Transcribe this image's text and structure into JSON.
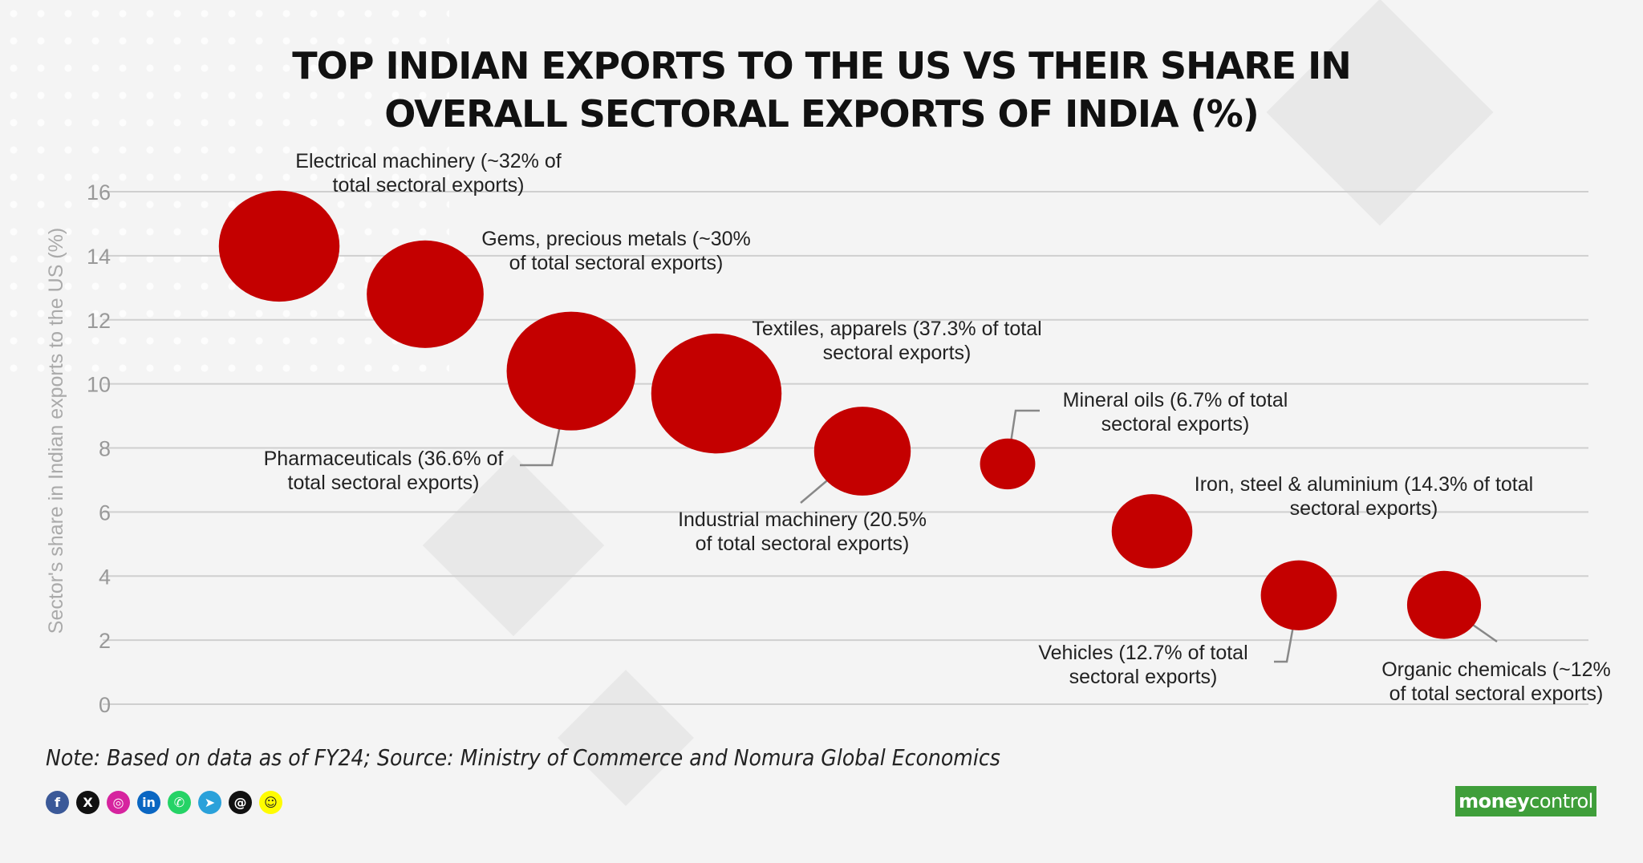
{
  "title_lines": [
    "TOP INDIAN EXPORTS TO THE US VS THEIR SHARE IN",
    "OVERALL SECTORAL EXPORTS OF INDIA (%)"
  ],
  "chart_data": {
    "type": "scatter",
    "title": "TOP INDIAN EXPORTS TO THE US VS THEIR SHARE IN OVERALL SECTORAL EXPORTS OF INDIA (%)",
    "ylabel": "Sector's share in Indian exports to the US (%)",
    "xlabel": "",
    "ylim": [
      0,
      16
    ],
    "yticks": [
      0,
      2,
      4,
      6,
      8,
      10,
      12,
      14,
      16
    ],
    "grid": true,
    "point_color": "#c40000",
    "points": [
      {
        "label_lines": [
          "Electrical machinery (~32% of",
          "total sectoral exports)"
        ],
        "y": 14.3,
        "bubble_size": 32
      },
      {
        "label_lines": [
          "Gems, precious metals (~30%",
          "of total sectoral exports)"
        ],
        "y": 12.8,
        "bubble_size": 30
      },
      {
        "label_lines": [
          "Pharmaceuticals (36.6% of",
          "total sectoral exports)"
        ],
        "y": 10.4,
        "bubble_size": 36.6
      },
      {
        "label_lines": [
          "Textiles, apparels (37.3% of total",
          "sectoral exports)"
        ],
        "y": 9.7,
        "bubble_size": 37.3
      },
      {
        "label_lines": [
          "Industrial machinery (20.5%",
          "of total sectoral exports)"
        ],
        "y": 7.9,
        "bubble_size": 20.5
      },
      {
        "label_lines": [
          "Mineral oils (6.7% of total",
          "sectoral exports)"
        ],
        "y": 7.5,
        "bubble_size": 6.7
      },
      {
        "label_lines": [
          "Iron, steel & aluminium (14.3% of total",
          "sectoral exports)"
        ],
        "y": 5.4,
        "bubble_size": 14.3
      },
      {
        "label_lines": [
          "Vehicles (12.7% of total",
          "sectoral exports)"
        ],
        "y": 3.4,
        "bubble_size": 12.7
      },
      {
        "label_lines": [
          "Organic chemicals (~12%",
          "of total sectoral exports)"
        ],
        "y": 3.1,
        "bubble_size": 12
      }
    ]
  },
  "note": "Note: Based on data as of FY24; Source: Ministry of Commerce and Nomura Global Economics",
  "socials": [
    {
      "icon": "facebook-icon",
      "glyph": "f",
      "color": "#3b5998"
    },
    {
      "icon": "x-icon",
      "glyph": "X",
      "color": "#111111"
    },
    {
      "icon": "instagram-icon",
      "glyph": "◎",
      "color": "#d6249f"
    },
    {
      "icon": "linkedin-icon",
      "glyph": "in",
      "color": "#0a66c2"
    },
    {
      "icon": "whatsapp-icon",
      "glyph": "✆",
      "color": "#25d366"
    },
    {
      "icon": "telegram-icon",
      "glyph": "➤",
      "color": "#2aa1da"
    },
    {
      "icon": "threads-icon",
      "glyph": "@",
      "color": "#111111"
    },
    {
      "icon": "snapchat-icon",
      "glyph": "☺",
      "color": "#fffc00"
    }
  ],
  "brand": {
    "part1": "money",
    "part2": "control",
    "color": "#3f9e3a"
  }
}
